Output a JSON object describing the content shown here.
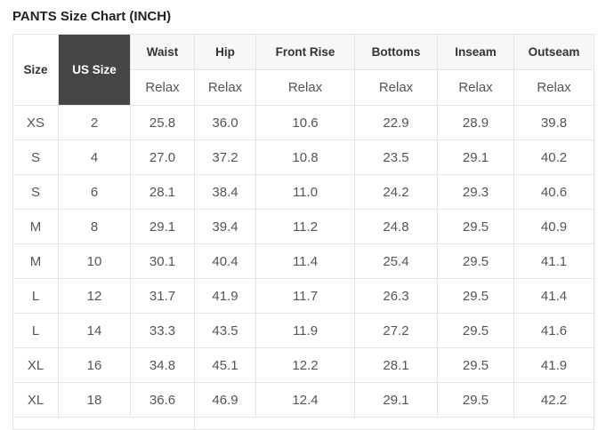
{
  "title": "PANTS Size Chart (INCH)",
  "table": {
    "columns": [
      {
        "label": "Size"
      },
      {
        "label": "US Size",
        "highlight": true
      },
      {
        "label": "Waist",
        "sub": "Relax"
      },
      {
        "label": "Hip",
        "sub": "Relax"
      },
      {
        "label": "Front Rise",
        "sub": "Relax"
      },
      {
        "label": "Bottoms",
        "sub": "Relax"
      },
      {
        "label": "Inseam",
        "sub": "Relax"
      },
      {
        "label": "Outseam",
        "sub": "Relax"
      }
    ],
    "rows": [
      [
        "XS",
        "2",
        "25.8",
        "36.0",
        "10.6",
        "22.9",
        "28.9",
        "39.8"
      ],
      [
        "S",
        "4",
        "27.0",
        "37.2",
        "10.8",
        "23.5",
        "29.1",
        "40.2"
      ],
      [
        "S",
        "6",
        "28.1",
        "38.4",
        "11.0",
        "24.2",
        "29.3",
        "40.6"
      ],
      [
        "M",
        "8",
        "29.1",
        "39.4",
        "11.2",
        "24.8",
        "29.5",
        "40.9"
      ],
      [
        "M",
        "10",
        "30.1",
        "40.4",
        "11.4",
        "25.4",
        "29.5",
        "41.1"
      ],
      [
        "L",
        "12",
        "31.7",
        "41.9",
        "11.7",
        "26.3",
        "29.5",
        "41.4"
      ],
      [
        "L",
        "14",
        "33.3",
        "43.5",
        "11.9",
        "27.2",
        "29.5",
        "41.6"
      ],
      [
        "XL",
        "16",
        "34.8",
        "45.1",
        "12.2",
        "28.1",
        "29.5",
        "41.9"
      ],
      [
        "XL",
        "18",
        "36.6",
        "46.9",
        "12.4",
        "29.1",
        "29.5",
        "42.2"
      ]
    ]
  },
  "colors": {
    "us_size_header_bg": "#464646",
    "us_size_header_text": "#ffffff",
    "header_bg": "#f7f7f7",
    "border": "#e3e3e3",
    "text": "#555555",
    "heading_text": "#222222"
  }
}
